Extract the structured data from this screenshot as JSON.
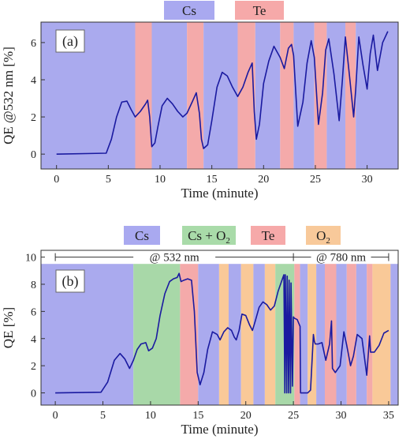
{
  "colors": {
    "cs": "#aaaaee",
    "te": "#f4aaaa",
    "cs_o2": "#a8d8a8",
    "o2": "#f9c998",
    "line": "#1a1aa0",
    "legend_cs": "#a9a9f0",
    "legend_te": "#f6a9a9",
    "legend_cs_o2": "#a9dba9",
    "legend_o2": "#f8c99a"
  },
  "legend_a": [
    {
      "label": "Cs",
      "color_key": "legend_cs"
    },
    {
      "label": "Te",
      "color_key": "legend_te"
    }
  ],
  "legend_b": [
    {
      "label": "Cs",
      "sub": "",
      "color_key": "legend_cs"
    },
    {
      "label": "Cs + O",
      "sub": "2",
      "color_key": "legend_cs_o2"
    },
    {
      "label": "Te",
      "sub": "",
      "color_key": "legend_te"
    },
    {
      "label": "O",
      "sub": "2",
      "color_key": "legend_o2"
    }
  ],
  "annotations_b": {
    "left": "@ 532 nm",
    "right": "@ 780 nm"
  },
  "chart_data": [
    {
      "type": "line",
      "panel_label": "(a)",
      "xlabel": "Time (minute)",
      "ylabel": "QE @532 nm [%]",
      "xlim": [
        -1.5,
        33
      ],
      "ylim": [
        -0.8,
        7.1
      ],
      "xticks": [
        0,
        5,
        10,
        15,
        20,
        25,
        30
      ],
      "yticks": [
        0,
        2,
        4,
        6
      ],
      "bands": [
        {
          "from": -1.5,
          "to": 7.6,
          "kind": "cs"
        },
        {
          "from": 7.6,
          "to": 9.2,
          "kind": "te"
        },
        {
          "from": 9.2,
          "to": 12.6,
          "kind": "cs"
        },
        {
          "from": 12.6,
          "to": 14.2,
          "kind": "te"
        },
        {
          "from": 14.2,
          "to": 17.5,
          "kind": "cs"
        },
        {
          "from": 17.5,
          "to": 19.2,
          "kind": "te"
        },
        {
          "from": 19.2,
          "to": 21.6,
          "kind": "cs"
        },
        {
          "from": 21.6,
          "to": 22.9,
          "kind": "te"
        },
        {
          "from": 22.9,
          "to": 24.9,
          "kind": "cs"
        },
        {
          "from": 24.9,
          "to": 26.1,
          "kind": "te"
        },
        {
          "from": 26.1,
          "to": 27.9,
          "kind": "cs"
        },
        {
          "from": 27.9,
          "to": 28.9,
          "kind": "te"
        },
        {
          "from": 28.9,
          "to": 33,
          "kind": "cs"
        }
      ],
      "series": [
        {
          "x": [
            0,
            4.8,
            5.3,
            5.8,
            6.3,
            6.8,
            7.2,
            7.6,
            8.1,
            8.6,
            8.8,
            9.0,
            9.2,
            9.5,
            9.8,
            10.2,
            10.7,
            11.2,
            11.7,
            12.2,
            12.6,
            13.1,
            13.5,
            13.8,
            14.0,
            14.2,
            14.6,
            15.0,
            15.5,
            16.0,
            16.5,
            17.0,
            17.5,
            18.0,
            18.5,
            18.9,
            19.1,
            19.3,
            19.6,
            20.0,
            20.5,
            21.0,
            21.6,
            22.0,
            22.4,
            22.7,
            22.9,
            23.3,
            23.8,
            24.2,
            24.6,
            24.9,
            25.3,
            25.7,
            26.0,
            26.3,
            26.8,
            27.3,
            27.6,
            27.9,
            28.3,
            28.7,
            28.9,
            29.2,
            29.6,
            30.0,
            30.3,
            30.6,
            31.0,
            31.5,
            32.0
          ],
          "y": [
            0,
            0.05,
            0.8,
            2.0,
            2.8,
            2.85,
            2.4,
            2.0,
            2.3,
            2.7,
            2.9,
            2.0,
            0.4,
            0.6,
            1.5,
            2.6,
            3.0,
            2.7,
            2.3,
            2.0,
            2.2,
            2.8,
            3.3,
            2.2,
            0.8,
            0.3,
            0.5,
            1.8,
            3.6,
            4.4,
            4.2,
            3.6,
            3.1,
            3.6,
            4.4,
            4.9,
            2.3,
            0.8,
            1.6,
            3.8,
            5.0,
            5.8,
            5.2,
            4.6,
            5.7,
            5.9,
            5.3,
            1.5,
            2.8,
            4.9,
            6.1,
            5.2,
            1.6,
            3.3,
            5.6,
            6.2,
            4.3,
            1.8,
            3.9,
            6.3,
            4.2,
            2.0,
            3.5,
            6.3,
            4.8,
            3.5,
            5.4,
            6.4,
            4.5,
            6.0,
            6.6
          ]
        }
      ]
    },
    {
      "type": "line",
      "panel_label": "(b)",
      "xlabel": "Time (minute)",
      "ylabel": "QE [%]",
      "xlim": [
        -1.5,
        36
      ],
      "ylim": [
        -0.9,
        10.5
      ],
      "plot_ymax": 9.5,
      "xticks": [
        0,
        5,
        10,
        15,
        20,
        25,
        30,
        35
      ],
      "yticks": [
        0,
        2,
        4,
        6,
        8,
        10
      ],
      "wavelength_split_x": 25,
      "bands": [
        {
          "from": -1.5,
          "to": 8.2,
          "kind": "cs"
        },
        {
          "from": 8.2,
          "to": 13.1,
          "kind": "cs_o2"
        },
        {
          "from": 13.1,
          "to": 15.0,
          "kind": "te"
        },
        {
          "from": 15.0,
          "to": 17.2,
          "kind": "cs"
        },
        {
          "from": 17.2,
          "to": 18.2,
          "kind": "o2"
        },
        {
          "from": 18.2,
          "to": 19.5,
          "kind": "cs"
        },
        {
          "from": 19.5,
          "to": 20.8,
          "kind": "o2"
        },
        {
          "from": 20.8,
          "to": 22.0,
          "kind": "cs"
        },
        {
          "from": 22.0,
          "to": 23.1,
          "kind": "o2"
        },
        {
          "from": 23.1,
          "to": 25.1,
          "kind": "cs_o2"
        },
        {
          "from": 25.1,
          "to": 25.7,
          "kind": "te"
        },
        {
          "from": 25.7,
          "to": 26.5,
          "kind": "cs"
        },
        {
          "from": 26.5,
          "to": 27.4,
          "kind": "o2"
        },
        {
          "from": 27.4,
          "to": 28.3,
          "kind": "cs"
        },
        {
          "from": 28.3,
          "to": 29.5,
          "kind": "te"
        },
        {
          "from": 29.5,
          "to": 30.6,
          "kind": "cs"
        },
        {
          "from": 30.6,
          "to": 31.6,
          "kind": "te"
        },
        {
          "from": 31.6,
          "to": 32.7,
          "kind": "cs"
        },
        {
          "from": 32.7,
          "to": 33.3,
          "kind": "te"
        },
        {
          "from": 33.3,
          "to": 35.2,
          "kind": "o2"
        },
        {
          "from": 35.2,
          "to": 36,
          "kind": "cs"
        }
      ],
      "series": [
        {
          "x": [
            0,
            4.8,
            5.5,
            6.2,
            6.8,
            7.3,
            7.8,
            8.2,
            8.6,
            9.0,
            9.5,
            9.8,
            10.2,
            10.6,
            11.0,
            11.5,
            12.0,
            12.4,
            12.8,
            13.0,
            13.2,
            13.5,
            13.9,
            14.3,
            14.6,
            14.9,
            15.2,
            15.6,
            16.0,
            16.5,
            17.0,
            17.3,
            17.7,
            18.1,
            18.5,
            18.8,
            19.0,
            19.3,
            19.6,
            20.0,
            20.4,
            20.7,
            21.0,
            21.4,
            21.8,
            22.2,
            22.6,
            23.0,
            23.4,
            23.8,
            24.0,
            24.1,
            24.15,
            24.3,
            24.35,
            24.5,
            24.55,
            24.7,
            24.75,
            24.9,
            25.0,
            25.1,
            25.4,
            25.7,
            25.75,
            26.0,
            26.5,
            26.8,
            27.1,
            27.2,
            27.3,
            27.6,
            28.0,
            28.4,
            28.8,
            29.0,
            29.1,
            29.4,
            29.9,
            30.3,
            30.6,
            31.0,
            31.3,
            31.7,
            32.2,
            32.7,
            33.0,
            33.1,
            33.5,
            34.0,
            34.5,
            35.0
          ],
          "y": [
            0,
            0.05,
            0.8,
            2.4,
            2.9,
            2.5,
            1.8,
            2.4,
            3.2,
            3.6,
            3.7,
            3.1,
            3.3,
            4.0,
            5.7,
            7.3,
            8.2,
            8.4,
            8.5,
            8.8,
            8.2,
            8.3,
            8.4,
            8.3,
            6.0,
            1.5,
            0.6,
            1.5,
            3.2,
            4.5,
            4.3,
            3.9,
            4.5,
            4.8,
            4.6,
            4.1,
            3.9,
            4.6,
            5.8,
            5.7,
            5.0,
            4.6,
            5.3,
            6.3,
            6.7,
            6.5,
            6.1,
            6.4,
            7.5,
            8.3,
            8.7,
            0,
            8.7,
            0,
            8.6,
            0,
            8.3,
            0,
            8.1,
            0.5,
            5.6,
            5.5,
            5.4,
            4.9,
            0,
            0,
            0,
            0.2,
            4.3,
            3.8,
            3.6,
            3.6,
            3.7,
            2.4,
            3.6,
            5.3,
            1.8,
            1.5,
            2.0,
            4.5,
            3.5,
            2.0,
            2.7,
            4.3,
            4.0,
            1.3,
            4.2,
            3.0,
            3.0,
            3.5,
            4.4,
            4.6
          ]
        }
      ]
    }
  ]
}
